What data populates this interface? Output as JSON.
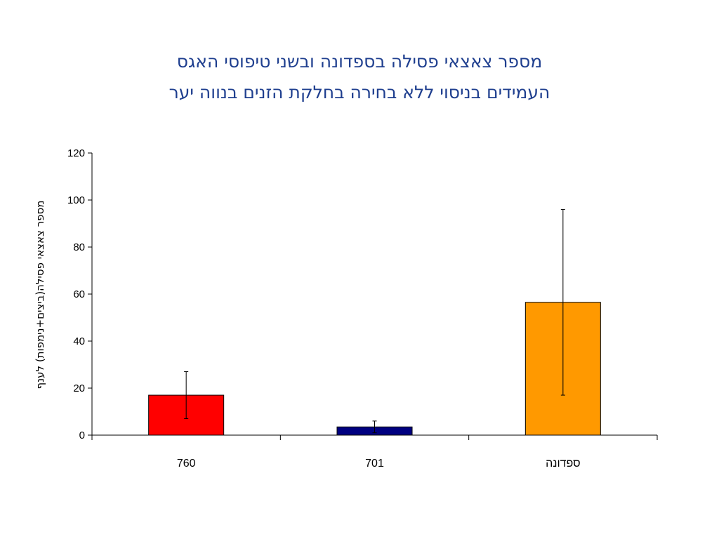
{
  "chart_data": {
    "type": "bar",
    "title_line1": "מספר צאצאי פסילה בספדונה ובשני טיפוסי האגס",
    "title_line2": "העמידים בניסוי ללא בחירה בחלקת הזנים בנווה יער",
    "xlabel": "",
    "ylabel": "מספר צאצאי פסילה(ביצים+נימפות) לענף",
    "ylim": [
      0,
      120
    ],
    "yticks": [
      0,
      20,
      40,
      60,
      80,
      100,
      120
    ],
    "categories": [
      "760",
      "701",
      "ספדונה"
    ],
    "values": [
      17,
      3.5,
      56.5
    ],
    "errors": [
      10,
      2.5,
      39.5
    ],
    "colors": [
      "#ff0000",
      "#000080",
      "#ff9900"
    ],
    "grid": false,
    "legend": "none"
  }
}
